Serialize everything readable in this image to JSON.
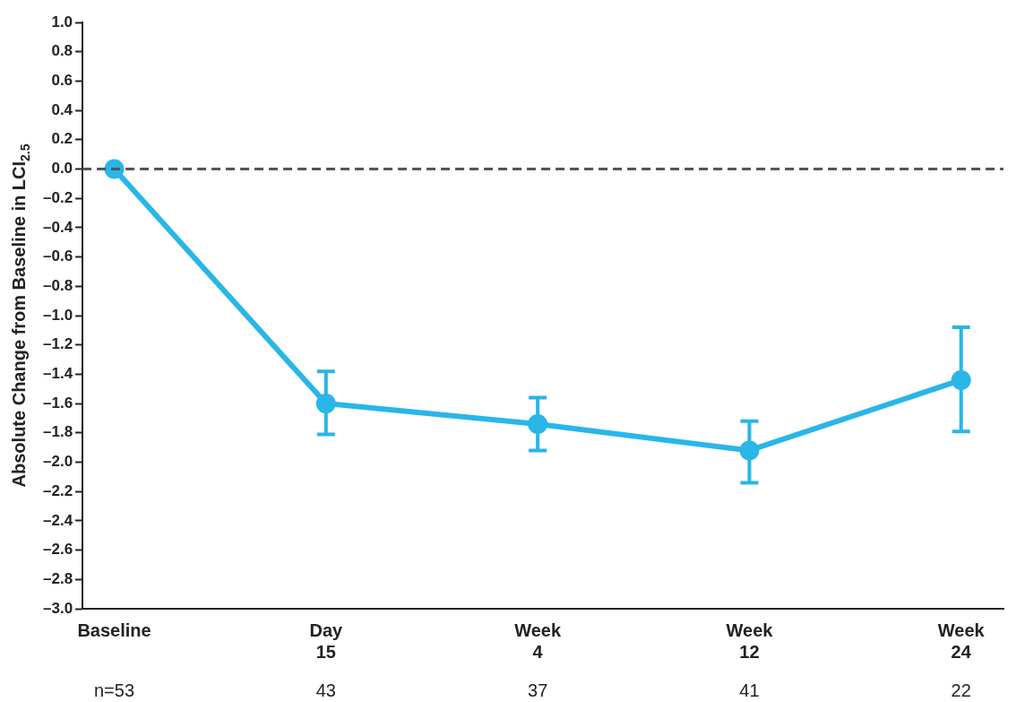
{
  "chart_data": {
    "type": "line",
    "ylabel": "Absolute Change from Baseline in LCI$_{2.5}$",
    "categories": [
      "Baseline",
      "Day\n15",
      "Week\n4",
      "Week\n12",
      "Week\n24"
    ],
    "series": [
      {
        "color": "#29b6e8",
        "values": [
          0,
          -1.6,
          -1.74,
          -1.92,
          -1.44
        ],
        "errors": [
          null,
          [
            -1.81,
            -1.38
          ],
          [
            -1.92,
            -1.56
          ],
          [
            -2.14,
            -1.72
          ],
          [
            -1.79,
            -1.08
          ]
        ]
      }
    ],
    "ylim": [
      -3,
      1
    ],
    "yticks": [
      {
        "value": 1,
        "label": "1.0"
      },
      {
        "value": 0.8,
        "label": "0.8"
      },
      {
        "value": 0.6,
        "label": "0.6"
      },
      {
        "value": 0.4,
        "label": "0.4"
      },
      {
        "value": 0.2,
        "label": "0.2"
      },
      {
        "value": 0,
        "label": "0.0"
      },
      {
        "value": -0.2,
        "label": "–0.2"
      },
      {
        "value": -0.4,
        "label": "–0.4"
      },
      {
        "value": -0.6,
        "label": "–0.6"
      },
      {
        "value": -0.8,
        "label": "–0.8"
      },
      {
        "value": -1,
        "label": "–1.0"
      },
      {
        "value": -1.2,
        "label": "–1.2"
      },
      {
        "value": -1.4,
        "label": "–1.4"
      },
      {
        "value": -1.6,
        "label": "–1.6"
      },
      {
        "value": -1.8,
        "label": "–1.8"
      },
      {
        "value": -2,
        "label": "–2.0"
      },
      {
        "value": -2.2,
        "label": "–2.2"
      },
      {
        "value": -2.4,
        "label": "–2.4"
      },
      {
        "value": -2.6,
        "label": "–2.6"
      },
      {
        "value": -2.8,
        "label": "–2.8"
      },
      {
        "value": -3,
        "label": "–3.0"
      }
    ],
    "ref_lines": [
      {
        "axis": "y",
        "value": 0,
        "color": "#555555",
        "line_style": "dashed"
      }
    ],
    "annotations": [
      "n=53",
      "43",
      "37",
      "41",
      "22"
    ],
    "marker": "circle",
    "line_style": "solid",
    "grid": false,
    "legend": false
  }
}
